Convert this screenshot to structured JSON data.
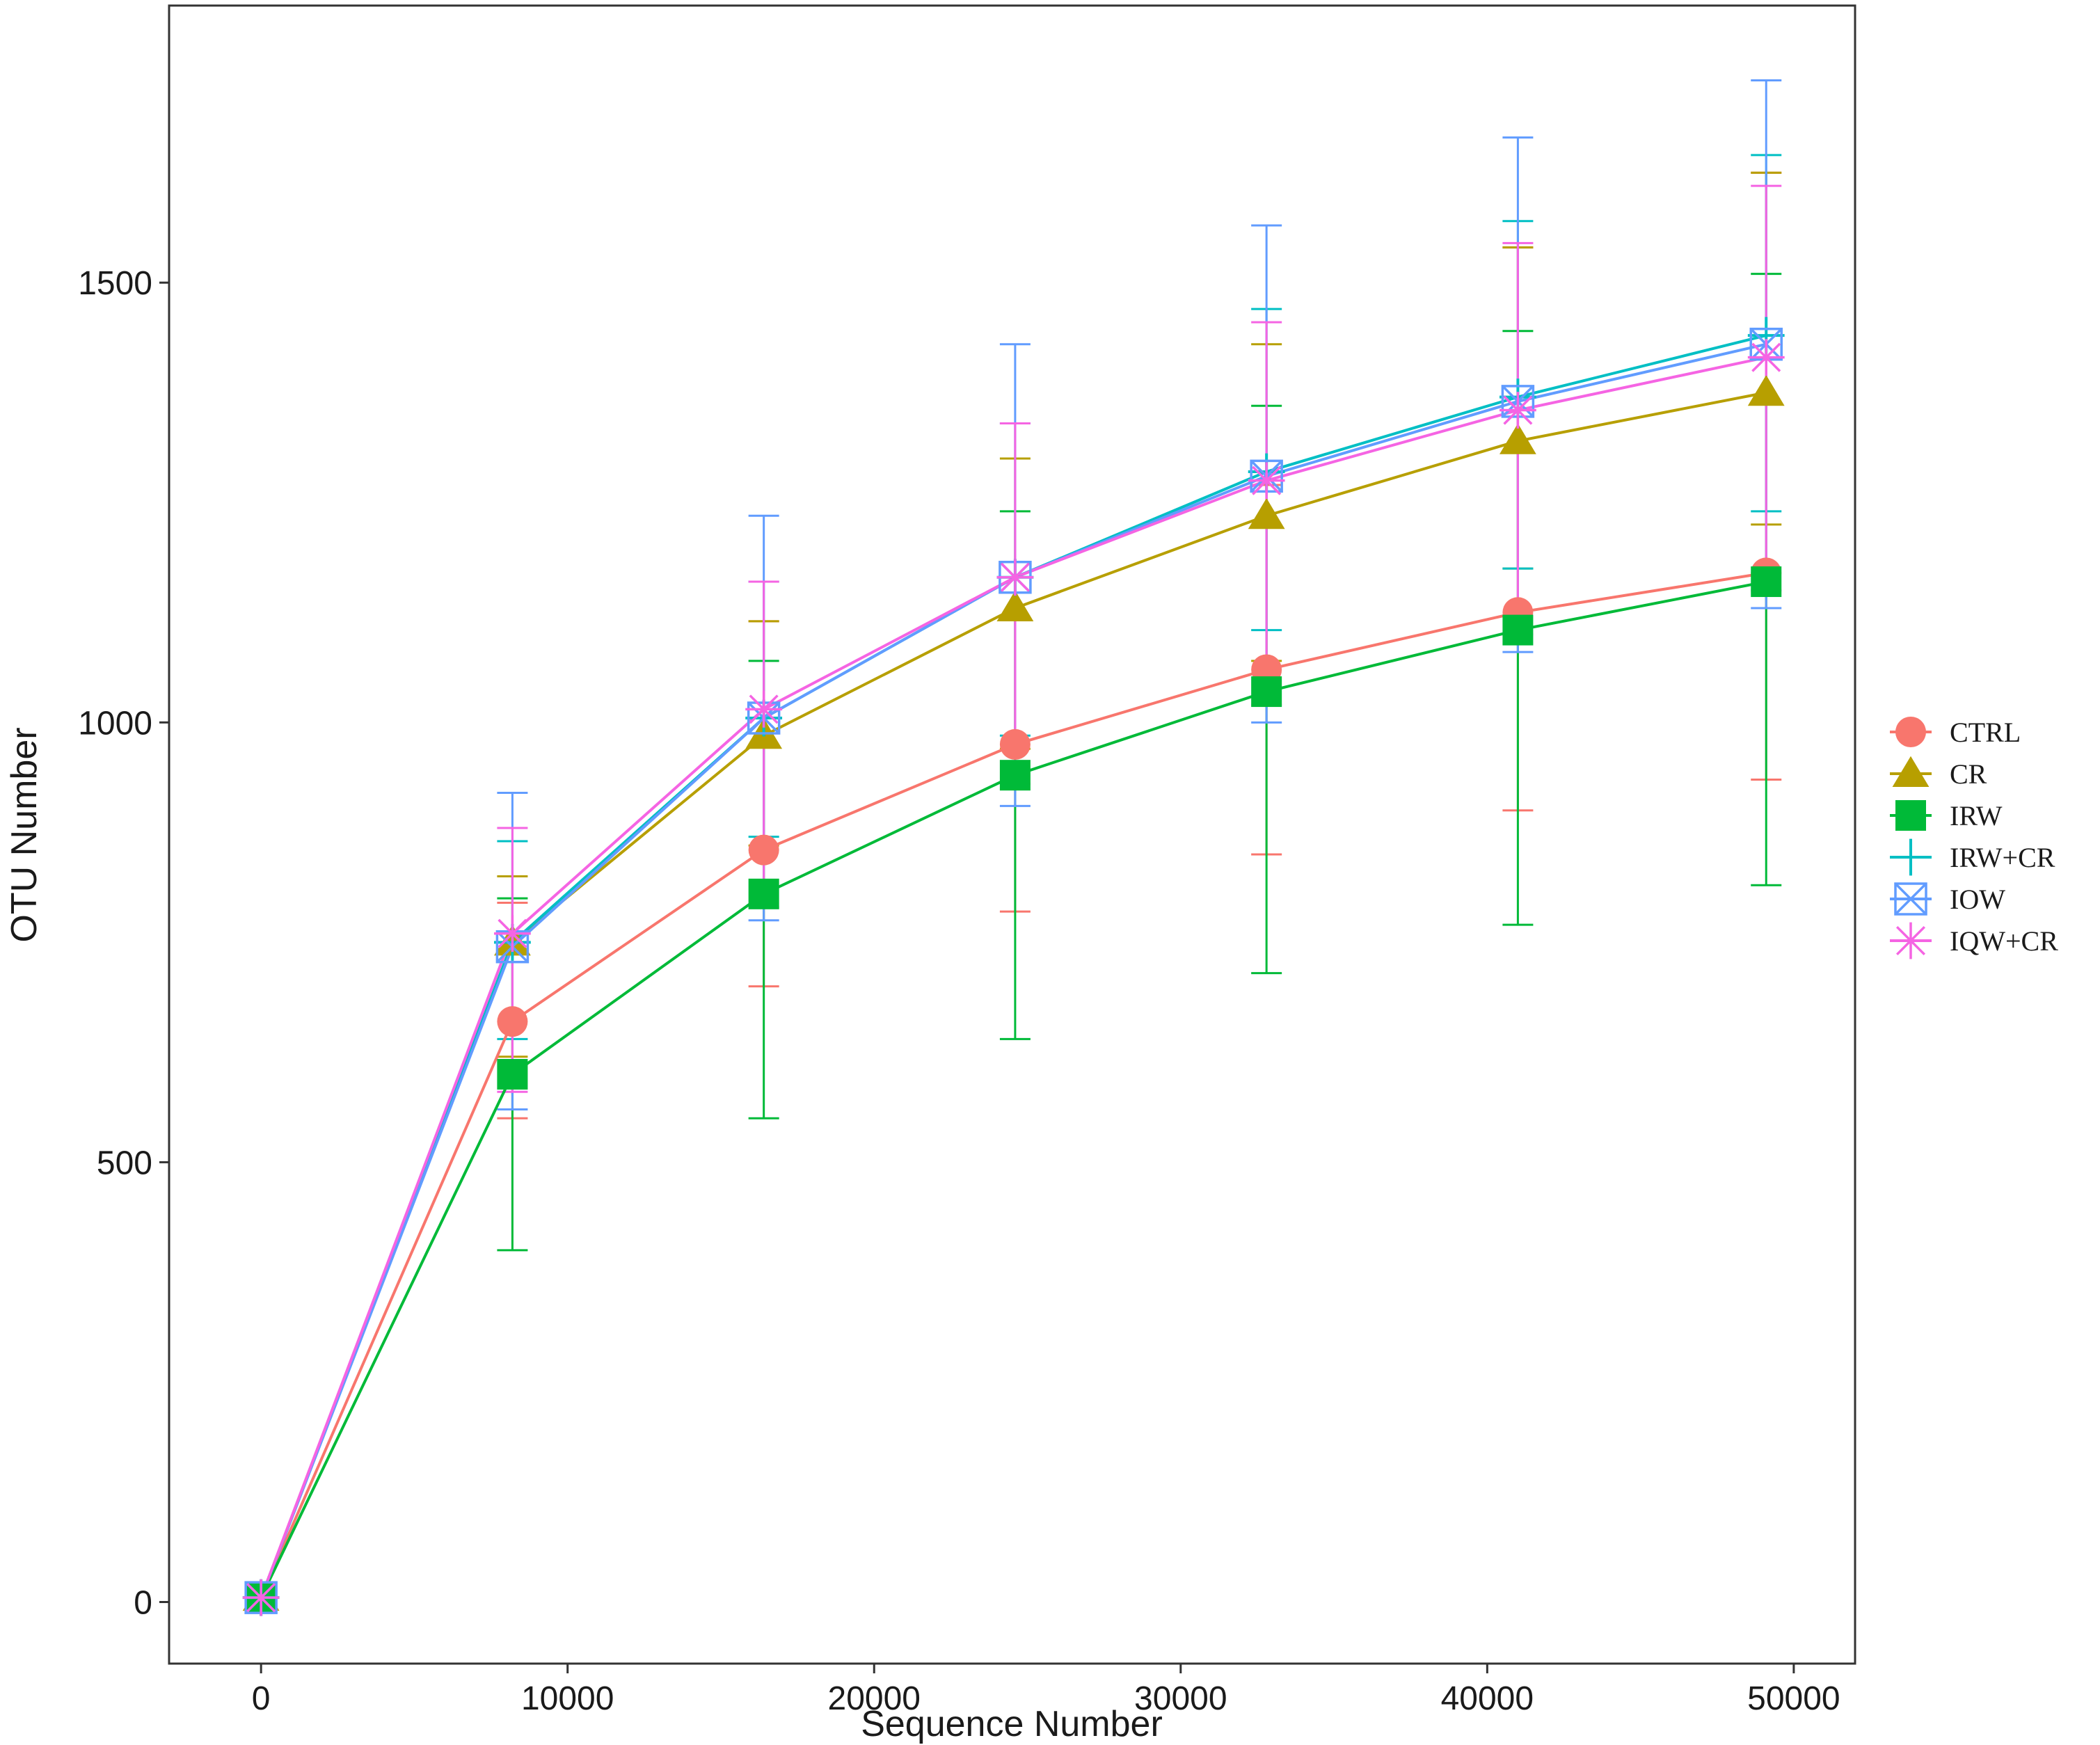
{
  "chart_data": {
    "type": "line",
    "title": "",
    "xlabel": "Sequence Number",
    "ylabel": "OTU Number",
    "xlim": [
      -3000,
      52000
    ],
    "ylim": [
      -70,
      1815
    ],
    "x_ticks": [
      0,
      10000,
      20000,
      30000,
      40000,
      50000
    ],
    "y_ticks": [
      0,
      500,
      1000,
      1500
    ],
    "grid": false,
    "legend_position": "right",
    "x": [
      0,
      8200,
      16400,
      24600,
      32800,
      41000,
      49100
    ],
    "series": [
      {
        "name": "CTRL",
        "color": "#F8766D",
        "marker": "circle",
        "values": [
          5,
          660,
          855,
          975,
          1060,
          1125,
          1170
        ],
        "err_low": [
          5,
          550,
          700,
          785,
          850,
          900,
          935
        ],
        "err_high": [
          5,
          795,
          1115,
          1165,
          1270,
          1540,
          1625
        ]
      },
      {
        "name": "CR",
        "color": "#B79F00",
        "marker": "triangle",
        "values": [
          5,
          750,
          985,
          1130,
          1235,
          1320,
          1375
        ],
        "err_low": [
          5,
          620,
          860,
          970,
          1070,
          1175,
          1225
        ],
        "err_high": [
          5,
          825,
          1115,
          1300,
          1430,
          1540,
          1625
        ]
      },
      {
        "name": "IRW",
        "color": "#00BA38",
        "marker": "square",
        "values": [
          5,
          600,
          805,
          940,
          1035,
          1105,
          1160
        ],
        "err_low": [
          5,
          400,
          550,
          640,
          715,
          770,
          815
        ],
        "err_high": [
          5,
          800,
          1070,
          1240,
          1360,
          1445,
          1510
        ]
      },
      {
        "name": "IRW+CR",
        "color": "#00BFC4",
        "marker": "plus",
        "values": [
          5,
          750,
          1005,
          1165,
          1285,
          1370,
          1440
        ],
        "err_low": [
          5,
          640,
          870,
          985,
          1105,
          1175,
          1240
        ],
        "err_high": [
          5,
          865,
          1160,
          1340,
          1470,
          1570,
          1645
        ]
      },
      {
        "name": "IOW",
        "color": "#619CFF",
        "marker": "boxcross",
        "values": [
          5,
          745,
          1005,
          1165,
          1280,
          1365,
          1430
        ],
        "err_low": [
          5,
          560,
          775,
          905,
          1000,
          1080,
          1130
        ],
        "err_high": [
          5,
          920,
          1235,
          1430,
          1565,
          1665,
          1730
        ]
      },
      {
        "name": "IQW+CR",
        "color": "#F564E3",
        "marker": "asterisk",
        "values": [
          5,
          760,
          1015,
          1165,
          1275,
          1355,
          1415
        ],
        "err_low": [
          5,
          580,
          790,
          930,
          1020,
          1100,
          1150
        ],
        "err_high": [
          5,
          880,
          1160,
          1340,
          1455,
          1545,
          1610
        ]
      }
    ]
  }
}
